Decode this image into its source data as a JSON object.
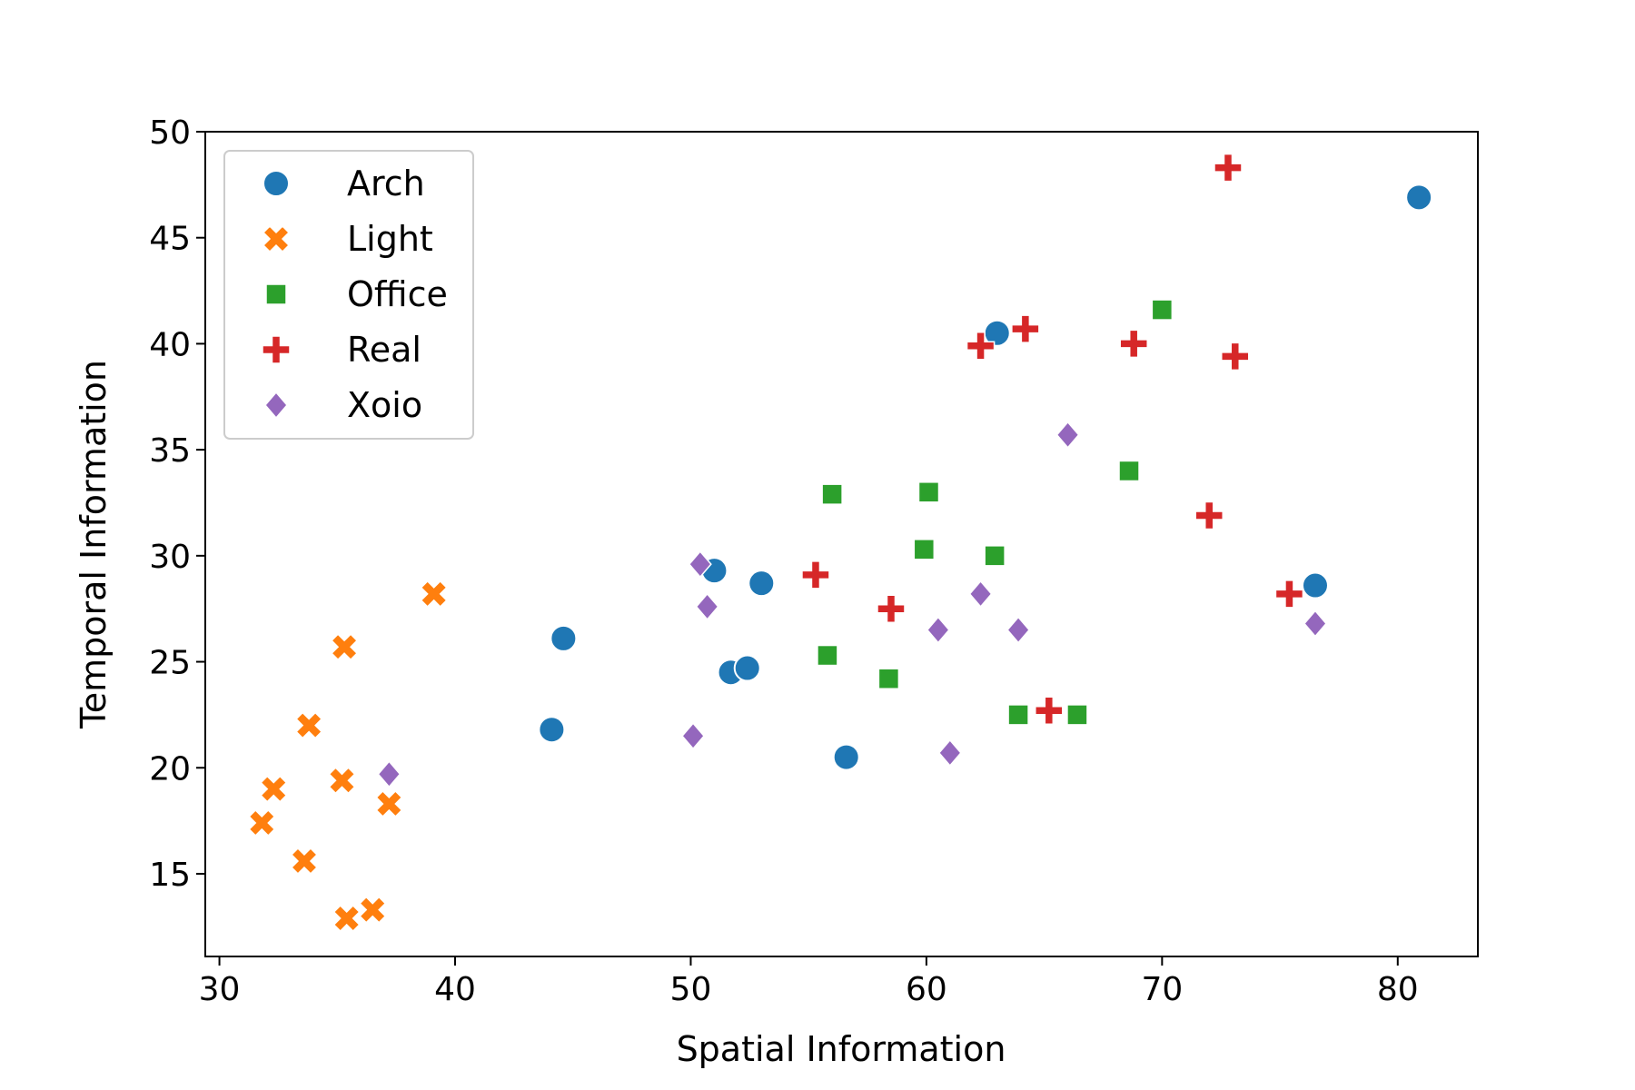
{
  "chart_data": {
    "type": "scatter",
    "title": "",
    "xlabel": "Spatial Information",
    "ylabel": "Temporal Information",
    "xlim": [
      29.4,
      83.4
    ],
    "ylim": [
      11.1,
      50
    ],
    "xticks": [
      30,
      40,
      50,
      60,
      70,
      80
    ],
    "yticks": [
      15,
      20,
      25,
      30,
      35,
      40,
      45,
      50
    ],
    "grid": false,
    "legend_position": "top-left",
    "series": [
      {
        "name": "Arch",
        "marker": "circle",
        "color": "#1f77b4",
        "points": [
          [
            80.9,
            46.9
          ],
          [
            63.0,
            40.5
          ],
          [
            76.5,
            28.6
          ],
          [
            51.0,
            29.3
          ],
          [
            53.0,
            28.7
          ],
          [
            44.6,
            26.1
          ],
          [
            51.7,
            24.5
          ],
          [
            52.4,
            24.7
          ],
          [
            44.1,
            21.8
          ],
          [
            56.6,
            20.5
          ]
        ]
      },
      {
        "name": "Light",
        "marker": "x",
        "color": "#ff7f0e",
        "points": [
          [
            39.1,
            28.2
          ],
          [
            35.3,
            25.7
          ],
          [
            33.8,
            22.0
          ],
          [
            32.3,
            19.0
          ],
          [
            35.2,
            19.4
          ],
          [
            37.2,
            18.3
          ],
          [
            31.8,
            17.4
          ],
          [
            33.6,
            15.6
          ],
          [
            35.4,
            12.9
          ],
          [
            36.5,
            13.3
          ]
        ]
      },
      {
        "name": "Office",
        "marker": "square",
        "color": "#2ca02c",
        "points": [
          [
            70.0,
            41.6
          ],
          [
            68.6,
            34.0
          ],
          [
            60.1,
            33.0
          ],
          [
            56.0,
            32.9
          ],
          [
            59.9,
            30.3
          ],
          [
            62.9,
            30.0
          ],
          [
            55.8,
            25.3
          ],
          [
            58.4,
            24.2
          ],
          [
            63.9,
            22.5
          ],
          [
            66.4,
            22.5
          ]
        ]
      },
      {
        "name": "Real",
        "marker": "plus",
        "color": "#d62728",
        "points": [
          [
            72.8,
            48.3
          ],
          [
            64.2,
            40.7
          ],
          [
            62.3,
            39.9
          ],
          [
            68.8,
            40.0
          ],
          [
            73.1,
            39.4
          ],
          [
            72.0,
            31.9
          ],
          [
            55.3,
            29.1
          ],
          [
            58.5,
            27.5
          ],
          [
            75.4,
            28.2
          ],
          [
            65.2,
            22.7
          ]
        ]
      },
      {
        "name": "Xoio",
        "marker": "diamond",
        "color": "#9467bd",
        "points": [
          [
            66.0,
            35.7
          ],
          [
            50.4,
            29.6
          ],
          [
            50.7,
            27.6
          ],
          [
            62.3,
            28.2
          ],
          [
            60.5,
            26.5
          ],
          [
            63.9,
            26.5
          ],
          [
            76.5,
            26.8
          ],
          [
            50.1,
            21.5
          ],
          [
            61.0,
            20.7
          ],
          [
            37.2,
            19.7
          ]
        ]
      }
    ]
  }
}
